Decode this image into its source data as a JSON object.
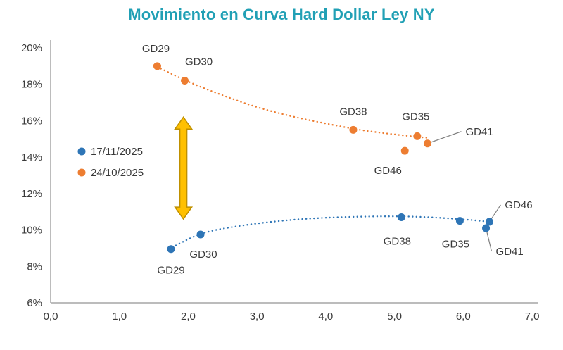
{
  "title": "Movimiento en Curva Hard Dollar Ley NY",
  "colors": {
    "title": "#21A0B5",
    "axis": "#A6A6A6",
    "text": "#3A3A3A",
    "series_blue": "#2E75B6",
    "series_orange": "#ED7D31",
    "arrow_fill": "#FFC000",
    "arrow_stroke": "#BF9000",
    "leader": "#7F7F7F"
  },
  "chart_data": {
    "type": "scatter",
    "title": "Movimiento en Curva Hard Dollar Ley NY",
    "x_range": [
      0,
      7
    ],
    "x_tick_labels": [
      "0,0",
      "1,0",
      "2,0",
      "3,0",
      "4,0",
      "5,0",
      "6,0",
      "7,0"
    ],
    "y_range": [
      6,
      20
    ],
    "y_tick_labels": [
      "6%",
      "8%",
      "10%",
      "12%",
      "14%",
      "16%",
      "18%",
      "20%"
    ],
    "grid": false,
    "legend_position": "middle-left",
    "legend": [
      {
        "label": "17/11/2025",
        "color": "#2E75B6"
      },
      {
        "label": "24/10/2025",
        "color": "#ED7D31"
      }
    ],
    "series": [
      {
        "name": "24/10/2025",
        "color": "#ED7D31",
        "trend_style": "dotted",
        "points": [
          {
            "bond": "GD29",
            "x": 1.55,
            "y": 19.0,
            "dx": -2,
            "dy": -25,
            "anchor": "middle"
          },
          {
            "bond": "GD30",
            "x": 1.95,
            "y": 18.2,
            "dx": 20,
            "dy": -27,
            "anchor": "middle"
          },
          {
            "bond": "GD38",
            "x": 4.4,
            "y": 15.5,
            "dx": 0,
            "dy": -26,
            "anchor": "middle"
          },
          {
            "bond": "GD46",
            "x": 5.15,
            "y": 14.35,
            "dx": -24,
            "dy": 28,
            "anchor": "middle"
          },
          {
            "bond": "GD35",
            "x": 5.33,
            "y": 15.15,
            "dx": -2,
            "dy": -28,
            "anchor": "middle"
          },
          {
            "bond": "GD41",
            "x": 5.48,
            "y": 14.75,
            "dx": 54,
            "dy": -17,
            "anchor": "start",
            "leader": true
          }
        ],
        "trend": [
          [
            1.5,
            19.05
          ],
          [
            2.0,
            18.15
          ],
          [
            2.5,
            17.4
          ],
          [
            3.0,
            16.75
          ],
          [
            3.5,
            16.25
          ],
          [
            4.0,
            15.85
          ],
          [
            4.5,
            15.5
          ],
          [
            5.0,
            15.25
          ],
          [
            5.5,
            15.05
          ]
        ]
      },
      {
        "name": "17/11/2025",
        "color": "#2E75B6",
        "trend_style": "dotted",
        "points": [
          {
            "bond": "GD29",
            "x": 1.75,
            "y": 8.95,
            "dx": 0,
            "dy": 30,
            "anchor": "middle"
          },
          {
            "bond": "GD30",
            "x": 2.18,
            "y": 9.75,
            "dx": 4,
            "dy": 28,
            "anchor": "middle"
          },
          {
            "bond": "GD38",
            "x": 5.1,
            "y": 10.7,
            "dx": -6,
            "dy": 34,
            "anchor": "middle"
          },
          {
            "bond": "GD35",
            "x": 5.95,
            "y": 10.5,
            "dx": -6,
            "dy": 33,
            "anchor": "middle"
          },
          {
            "bond": "GD46",
            "x": 6.38,
            "y": 10.45,
            "dx": 22,
            "dy": -24,
            "anchor": "start",
            "leader": true
          },
          {
            "bond": "GD41",
            "x": 6.33,
            "y": 10.1,
            "dx": 14,
            "dy": 33,
            "anchor": "start",
            "leader": true
          }
        ],
        "trend": [
          [
            1.72,
            8.95
          ],
          [
            2.2,
            9.8
          ],
          [
            2.8,
            10.25
          ],
          [
            3.5,
            10.55
          ],
          [
            4.2,
            10.7
          ],
          [
            5.0,
            10.75
          ],
          [
            5.6,
            10.68
          ],
          [
            6.1,
            10.55
          ],
          [
            6.45,
            10.42
          ]
        ]
      }
    ],
    "annotation_arrow": {
      "x": 1.93,
      "y_top": 16.2,
      "y_bottom": 10.6
    }
  }
}
